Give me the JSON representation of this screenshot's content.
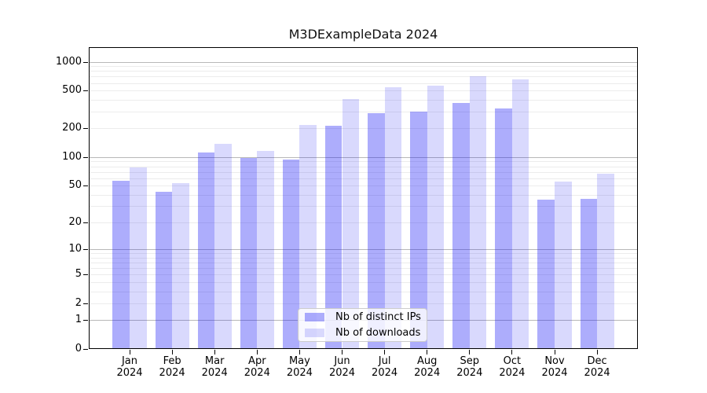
{
  "title": "M3DExampleData 2024",
  "colors": {
    "ips": "rgba(20,20,245,0.35)",
    "downloads": "rgba(20,20,245,0.16)",
    "ips_solid": "#a9a9f6",
    "downloads_solid": "#d9d9f9",
    "grid_major": "#b8b8b8",
    "grid_minor": "#ececec",
    "axis": "#000000",
    "legend_border": "#cccccc"
  },
  "legend": {
    "items": [
      {
        "label": "Nb of distinct IPs",
        "series": "ips"
      },
      {
        "label": "Nb of downloads",
        "series": "downloads"
      }
    ]
  },
  "chart_data": {
    "type": "bar",
    "title": "M3DExampleData 2024",
    "categories": [
      "Jan",
      "Feb",
      "Mar",
      "Apr",
      "May",
      "Jun",
      "Jul",
      "Aug",
      "Sep",
      "Oct",
      "Nov",
      "Dec"
    ],
    "year": "2024",
    "x_tick_labels": [
      "Jan\n2024",
      "Feb\n2024",
      "Mar\n2024",
      "Apr\n2024",
      "May\n2024",
      "Jun\n2024",
      "Jul\n2024",
      "Aug\n2024",
      "Sep\n2024",
      "Oct\n2024",
      "Nov\n2024",
      "Dec\n2024"
    ],
    "series": [
      {
        "name": "Nb of distinct IPs",
        "values": [
          56,
          43,
          112,
          97,
          95,
          213,
          287,
          298,
          369,
          327,
          35,
          36
        ]
      },
      {
        "name": "Nb of downloads",
        "values": [
          78,
          53,
          138,
          117,
          216,
          410,
          546,
          563,
          706,
          660,
          55,
          67
        ]
      }
    ],
    "yscale": "log1p",
    "yticks": [
      0,
      1,
      2,
      5,
      10,
      20,
      50,
      100,
      200,
      500,
      1000
    ],
    "major_gridlines": [
      1,
      10,
      100,
      1000
    ],
    "ylim": [
      0,
      1420
    ],
    "grid": "on",
    "legend_position": "lower center",
    "xlabel": "",
    "ylabel": ""
  }
}
